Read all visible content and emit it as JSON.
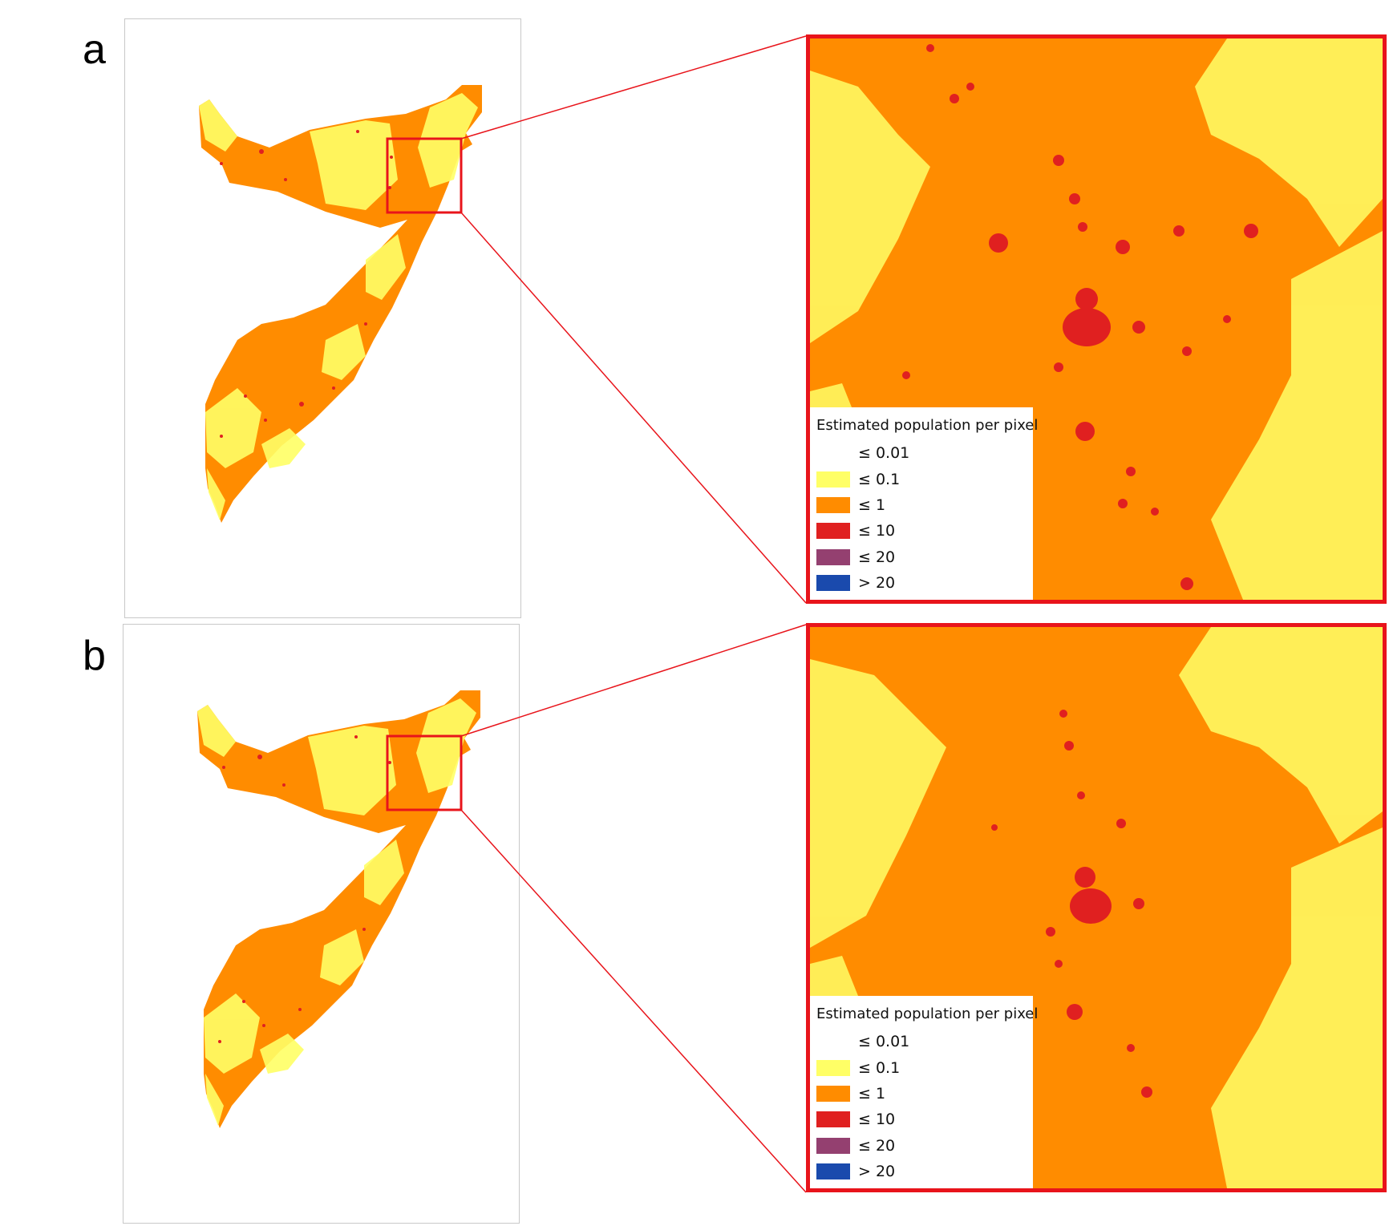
{
  "panels": [
    {
      "id": "a",
      "letter": "a",
      "legend": {
        "title": "Estimated population per pixel",
        "items": [
          {
            "label": "≤ 0.01",
            "color": "#ffffff"
          },
          {
            "label": "≤ 0.1",
            "color": "#ffff66"
          },
          {
            "label": "≤ 1",
            "color": "#ff8c00"
          },
          {
            "label": "≤ 10",
            "color": "#e02020"
          },
          {
            "label": "≤ 20",
            "color": "#944070"
          },
          {
            "label": "> 20",
            "color": "#1a4aad"
          }
        ]
      }
    },
    {
      "id": "b",
      "letter": "b",
      "legend": {
        "title": "Estimated population per pixel",
        "items": [
          {
            "label": "≤ 0.01",
            "color": "#ffffff"
          },
          {
            "label": "≤ 0.1",
            "color": "#ffff66"
          },
          {
            "label": "≤ 1",
            "color": "#ff8c00"
          },
          {
            "label": "≤ 10",
            "color": "#e02020"
          },
          {
            "label": "≤ 20",
            "color": "#944070"
          },
          {
            "label": "> 20",
            "color": "#1a4aad"
          }
        ]
      }
    }
  ],
  "colors": {
    "land": "#ff8c00",
    "sparse": "#ffff66",
    "dense": "#e02020",
    "highlight": "#e8141b",
    "frame": "#c8c8c8"
  }
}
